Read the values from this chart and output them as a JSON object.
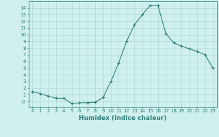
{
  "x": [
    0,
    1,
    2,
    3,
    4,
    5,
    6,
    7,
    8,
    9,
    10,
    11,
    12,
    13,
    14,
    15,
    16,
    17,
    18,
    19,
    20,
    21,
    22,
    23
  ],
  "y": [
    1.5,
    1.2,
    0.8,
    0.5,
    0.5,
    -0.3,
    -0.2,
    -0.15,
    -0.1,
    0.6,
    3.0,
    5.8,
    9.0,
    11.5,
    13.0,
    14.4,
    14.4,
    10.2,
    8.8,
    8.3,
    7.9,
    7.5,
    7.0,
    5.0
  ],
  "bg_color": "#cff0ee",
  "line_color": "#2d7d78",
  "marker_color": "#2d7d78",
  "xlabel": "Humidex (Indice chaleur)",
  "ylim": [
    -0.8,
    15.0
  ],
  "xlim": [
    -0.5,
    23.5
  ],
  "yticks": [
    0,
    1,
    2,
    3,
    4,
    5,
    6,
    7,
    8,
    9,
    10,
    11,
    12,
    13,
    14
  ],
  "ytick_labels": [
    "-0",
    "1",
    "2",
    "3",
    "4",
    "5",
    "6",
    "7",
    "8",
    "9",
    "10",
    "11",
    "12",
    "13",
    "14"
  ],
  "xticks": [
    0,
    1,
    2,
    3,
    4,
    5,
    6,
    7,
    8,
    9,
    10,
    11,
    12,
    13,
    14,
    15,
    16,
    17,
    18,
    19,
    20,
    21,
    22,
    23
  ],
  "grid_color": "#b0d8d4",
  "tick_fontsize": 5.0,
  "xlabel_fontsize": 6.5
}
